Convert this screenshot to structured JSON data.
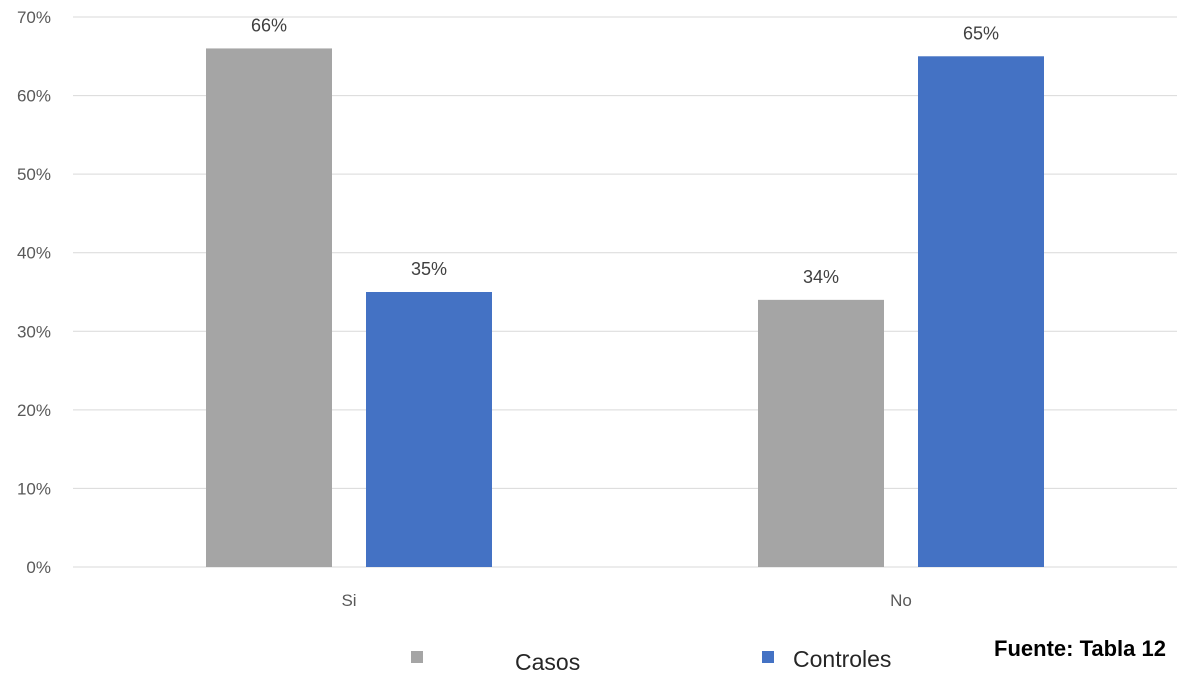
{
  "chart_data": {
    "type": "bar",
    "categories": [
      "Si",
      "No"
    ],
    "series": [
      {
        "name": "Casos",
        "values": [
          0.66,
          0.34
        ],
        "labels": [
          "66%",
          "34%"
        ],
        "color": "#a5a5a5"
      },
      {
        "name": "Controles",
        "values": [
          0.35,
          0.65
        ],
        "labels": [
          "35%",
          "65%"
        ],
        "color": "#4472c4"
      }
    ],
    "ylim": [
      0,
      0.7
    ],
    "yticks": [
      0,
      0.1,
      0.2,
      0.3,
      0.4,
      0.5,
      0.6,
      0.7
    ],
    "ytick_labels": [
      "0%",
      "10%",
      "20%",
      "30%",
      "40%",
      "50%",
      "60%",
      "70%"
    ],
    "grid": true,
    "legend_position": "bottom"
  },
  "source_note": "Fuente: Tabla 12"
}
